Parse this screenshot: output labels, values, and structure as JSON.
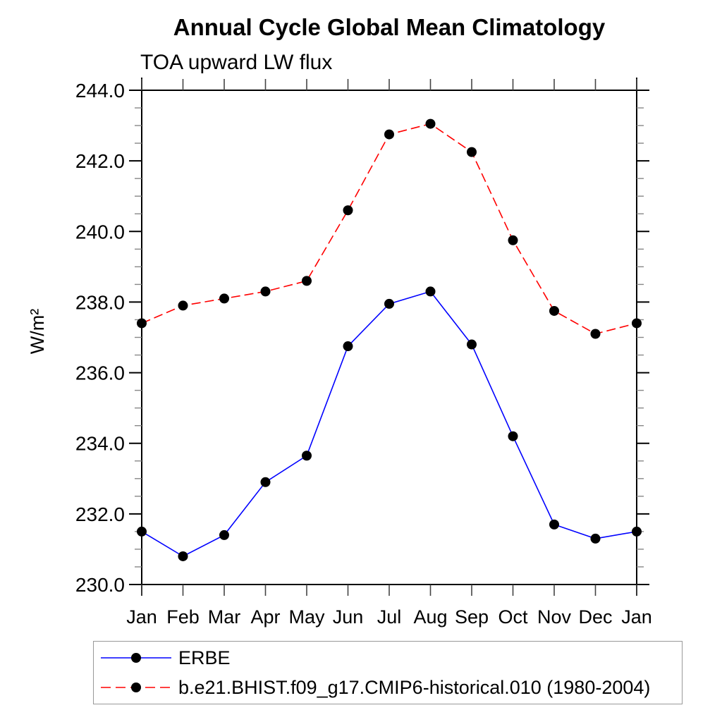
{
  "chart_data": {
    "type": "line",
    "title": "Annual Cycle Global Mean Climatology",
    "subtitle": "TOA upward LW flux",
    "ylabel": "W/m²",
    "x_categories": [
      "Jan",
      "Feb",
      "Mar",
      "Apr",
      "May",
      "Jun",
      "Jul",
      "Aug",
      "Sep",
      "Oct",
      "Nov",
      "Dec",
      "Jan"
    ],
    "ylim": [
      230.0,
      244.0
    ],
    "ytick_major_interval": 2.0,
    "ytick_minor_interval": 0.5,
    "ytick_labels": [
      "230.0",
      "232.0",
      "234.0",
      "236.0",
      "238.0",
      "240.0",
      "242.0",
      "244.0"
    ],
    "grid": false,
    "legend_position": "bottom-left",
    "series": [
      {
        "name": "ERBE",
        "color": "#0000ff",
        "line_style": "solid",
        "marker": "filled-circle",
        "marker_color": "#000000",
        "values": [
          231.5,
          230.8,
          231.4,
          232.9,
          233.65,
          236.75,
          237.95,
          238.3,
          236.8,
          234.2,
          231.7,
          231.3,
          231.5
        ]
      },
      {
        "name": "b.e21.BHIST.f09_g17.CMIP6-historical.010 (1980-2004)",
        "color": "#ff0000",
        "line_style": "dashed",
        "marker": "filled-circle",
        "marker_color": "#000000",
        "values": [
          237.4,
          237.9,
          238.1,
          238.3,
          238.6,
          240.6,
          242.75,
          243.05,
          242.25,
          239.75,
          237.75,
          237.1,
          237.4
        ]
      }
    ]
  },
  "colors": {
    "axis": "#000000",
    "minor_tick": "#888888",
    "month_tick": "#444444",
    "legend_border": "#999999",
    "background": "#ffffff"
  }
}
